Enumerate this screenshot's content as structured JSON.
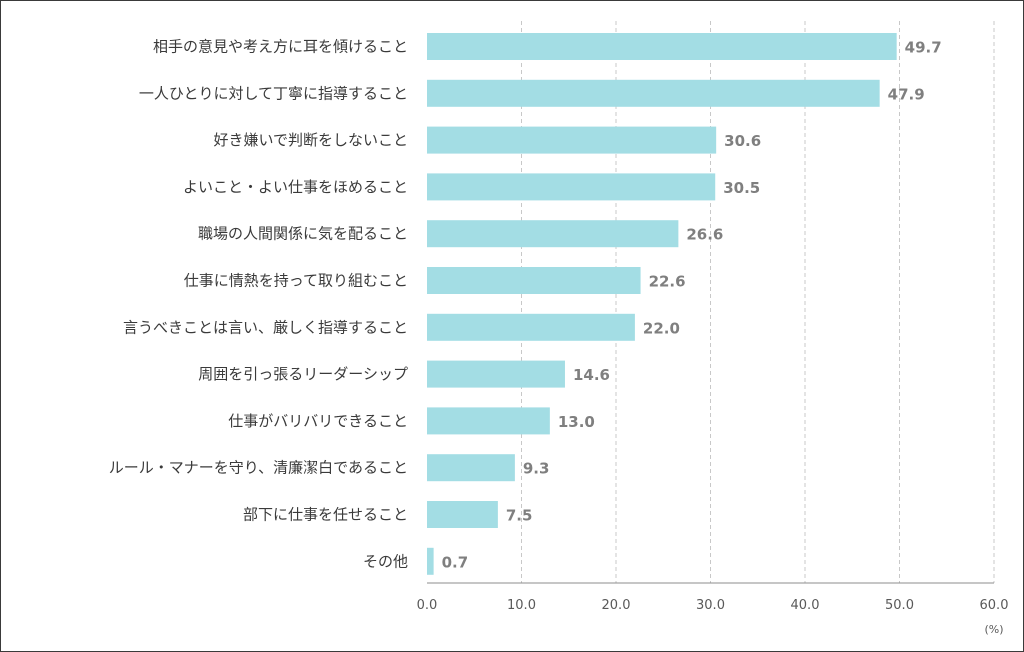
{
  "chart_data": {
    "type": "bar",
    "orientation": "horizontal",
    "categories": [
      "相手の意見や考え方に耳を傾けること",
      "一人ひとりに対して丁寧に指導すること",
      "好き嫌いで判断をしないこと",
      "よいこと・よい仕事をほめること",
      "職場の人間関係に気を配ること",
      "仕事に情熱を持って取り組むこと",
      "言うべきことは言い、厳しく指導すること",
      "周囲を引っ張るリーダーシップ",
      "仕事がバリバリできること",
      "ルール・マナーを守り、清廉潔白であること",
      "部下に仕事を任せること",
      "その他"
    ],
    "values": [
      49.7,
      47.9,
      30.6,
      30.5,
      26.6,
      22.6,
      22.0,
      14.6,
      13.0,
      9.3,
      7.5,
      0.7
    ],
    "value_labels": [
      "49.7",
      "47.9",
      "30.6",
      "30.5",
      "26.6",
      "22.6",
      "22.0",
      "14.6",
      "13.0",
      "9.3",
      "7.5",
      "0.7"
    ],
    "xlim": [
      0,
      60
    ],
    "x_ticks": [
      "0.0",
      "10.0",
      "20.0",
      "30.0",
      "40.0",
      "50.0",
      "60.0"
    ],
    "x_unit": "(%)",
    "grid": "vertical dashed",
    "legend": "none",
    "colors": {
      "bar": "#a3dde4",
      "grid": "#c8c8c8",
      "axis": "#8c8c8c"
    }
  }
}
